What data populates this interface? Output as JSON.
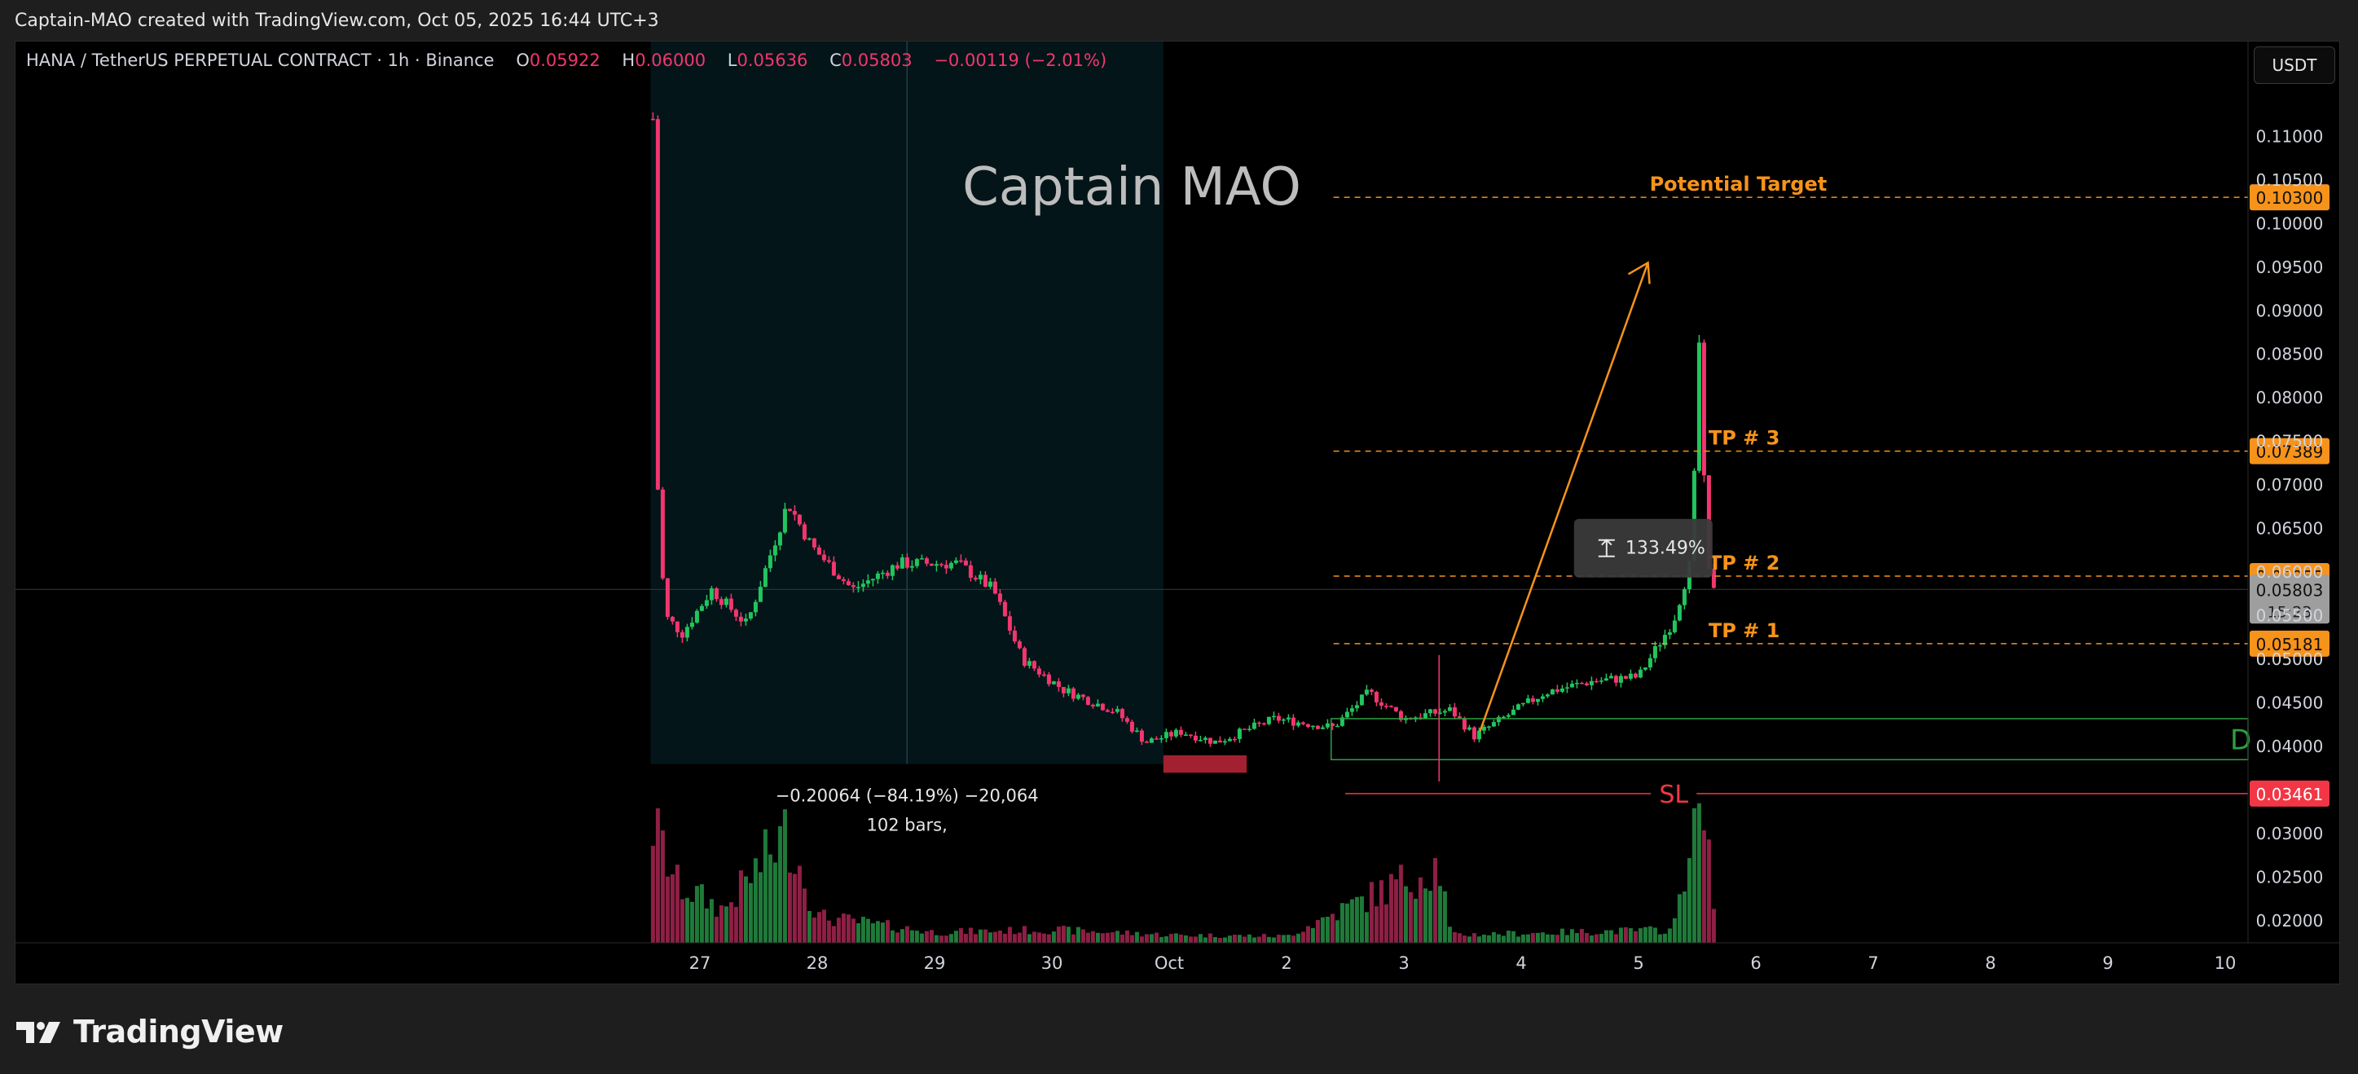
{
  "header": {
    "caption": "Captain-MAO created with TradingView.com, Oct 05, 2025 16:44 UTC+3"
  },
  "legend": {
    "symbol": "HANA / TetherUS PERPETUAL CONTRACT · 1h · Binance",
    "open_label": "O",
    "open": "0.05922",
    "high_label": "H",
    "high": "0.06000",
    "low_label": "L",
    "low": "0.05636",
    "close_label": "C",
    "close": "0.05803",
    "change": "−0.00119 (−2.01%)"
  },
  "currency_button": "USDT",
  "watermark": "Captain MAO",
  "footer": {
    "brand": "TradingView"
  },
  "colors": {
    "up": "#26a69a",
    "up_bright": "#22c55e",
    "down": "#f23670",
    "target": "#f7931a",
    "sl": "#f23645",
    "range_box": "#0a3c44",
    "zone_green": "#2ea043"
  },
  "chart_data": {
    "type": "candlestick",
    "symbol": "HANA/USDT",
    "interval": "1h",
    "ylim": [
      0.0188,
      0.1147
    ],
    "y_ticks": [
      "0.11000",
      "0.10500",
      "0.10000",
      "0.09500",
      "0.09000",
      "0.08500",
      "0.08000",
      "0.07500",
      "0.07000",
      "0.06500",
      "0.06000",
      "0.05500",
      "0.05000",
      "0.04500",
      "0.04000",
      "0.03000",
      "0.02500",
      "0.02000"
    ],
    "x_ticks": [
      "27",
      "28",
      "29",
      "30",
      "Oct",
      "2",
      "3",
      "4",
      "5",
      "6",
      "7",
      "8",
      "9",
      "10"
    ],
    "price_path": [
      {
        "day": 26.6,
        "price": 0.112
      },
      {
        "day": 26.62,
        "price": 0.075
      },
      {
        "day": 26.7,
        "price": 0.055
      },
      {
        "day": 26.85,
        "price": 0.053
      },
      {
        "day": 27.1,
        "price": 0.058
      },
      {
        "day": 27.4,
        "price": 0.054
      },
      {
        "day": 27.75,
        "price": 0.068
      },
      {
        "day": 27.95,
        "price": 0.063
      },
      {
        "day": 28.3,
        "price": 0.058
      },
      {
        "day": 28.7,
        "price": 0.061
      },
      {
        "day": 29.2,
        "price": 0.061
      },
      {
        "day": 29.5,
        "price": 0.058
      },
      {
        "day": 29.75,
        "price": 0.05
      },
      {
        "day": 30.1,
        "price": 0.0465
      },
      {
        "day": 30.55,
        "price": 0.044
      },
      {
        "day": 30.8,
        "price": 0.0405
      },
      {
        "day": 31.1,
        "price": 0.0417
      },
      {
        "day": 31.4,
        "price": 0.0405
      },
      {
        "day": 31.9,
        "price": 0.0432
      },
      {
        "day": 32.4,
        "price": 0.0422
      },
      {
        "day": 32.7,
        "price": 0.0462
      },
      {
        "day": 33.0,
        "price": 0.0432
      },
      {
        "day": 33.4,
        "price": 0.0442
      },
      {
        "day": 33.6,
        "price": 0.0412
      },
      {
        "day": 34.2,
        "price": 0.0462
      },
      {
        "day": 34.6,
        "price": 0.0475
      },
      {
        "day": 35.0,
        "price": 0.048
      },
      {
        "day": 35.3,
        "price": 0.0545
      },
      {
        "day": 35.45,
        "price": 0.0615
      },
      {
        "day": 35.52,
        "price": 0.0875
      },
      {
        "day": 35.58,
        "price": 0.0605
      },
      {
        "day": 35.66,
        "price": 0.058
      }
    ],
    "volume_path": [
      {
        "day": 26.6,
        "v": 0.9
      },
      {
        "day": 26.8,
        "v": 0.45
      },
      {
        "day": 27.2,
        "v": 0.25
      },
      {
        "day": 27.75,
        "v": 0.85
      },
      {
        "day": 28.0,
        "v": 0.2
      },
      {
        "day": 29.0,
        "v": 0.08
      },
      {
        "day": 30.0,
        "v": 0.1
      },
      {
        "day": 31.0,
        "v": 0.06
      },
      {
        "day": 32.0,
        "v": 0.05
      },
      {
        "day": 33.3,
        "v": 0.6
      },
      {
        "day": 33.4,
        "v": 0.06
      },
      {
        "day": 35.3,
        "v": 0.1
      },
      {
        "day": 35.45,
        "v": 0.9
      },
      {
        "day": 35.52,
        "v": 1.0
      },
      {
        "day": 35.66,
        "v": 0.3
      }
    ],
    "levels": [
      {
        "label": "Potential Target",
        "price": 0.103,
        "badge": "0.10300"
      },
      {
        "label": "TP # 3",
        "price": 0.07389,
        "badge": "0.07389"
      },
      {
        "label": "TP # 2",
        "price": 0.05955,
        "badge": "0.05955"
      },
      {
        "label": "TP # 1",
        "price": 0.05181,
        "badge": "0.05181"
      },
      {
        "label": "SL",
        "price": 0.03461,
        "badge": "0.03461"
      }
    ],
    "last_price": {
      "price": "0.05803",
      "countdown": "15:23"
    },
    "measure": {
      "text": "133.49%"
    },
    "range_stats": {
      "line1": "−0.20064 (−84.19%) −20,064",
      "line2": "102 bars,"
    },
    "zone_label": "D"
  }
}
